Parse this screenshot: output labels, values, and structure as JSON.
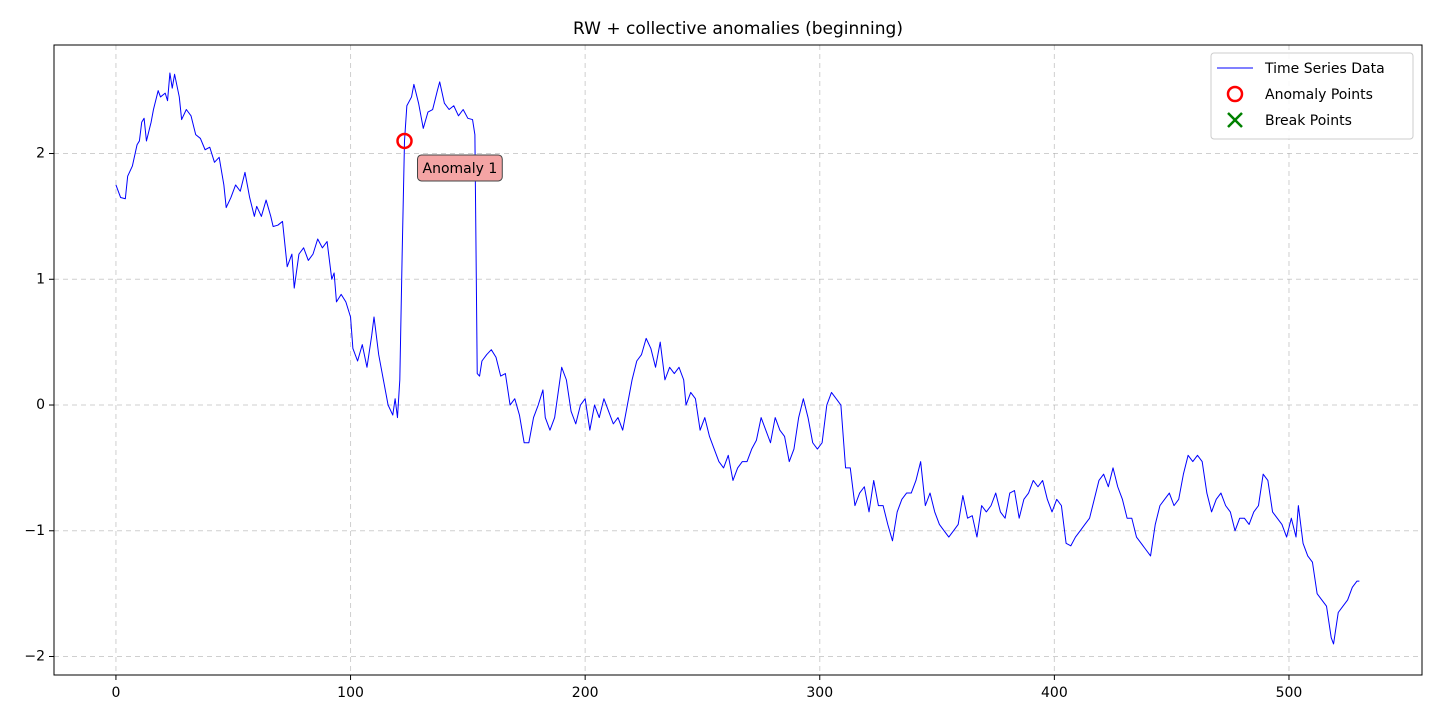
{
  "chart_data": {
    "type": "line",
    "title": "RW + collective anomalies (beginning)",
    "xlim": [
      -26.4,
      556.7
    ],
    "ylim": [
      -2.147,
      2.863
    ],
    "xticks": [
      0,
      100,
      200,
      300,
      400,
      500
    ],
    "yticks": [
      {
        "value": -2,
        "label": "−2"
      },
      {
        "value": -1,
        "label": "−1"
      },
      0,
      1,
      2
    ],
    "grid": true,
    "legend": "upper right",
    "annotations": [
      {
        "text": "Anomaly 1"
      }
    ],
    "series": [
      {
        "name": "Time Series Data",
        "color": "#0000ff",
        "marker": "line",
        "x": [
          0,
          2,
          4,
          5,
          7,
          9,
          10,
          11,
          12,
          13,
          15,
          16,
          18,
          19,
          21,
          22,
          23,
          24,
          25,
          27,
          28,
          30,
          32,
          34,
          36,
          38,
          40,
          42,
          44,
          46,
          47,
          49,
          51,
          53,
          55,
          57,
          59,
          60,
          62,
          64,
          66,
          67,
          69,
          71,
          73,
          75,
          76,
          78,
          80,
          82,
          84,
          86,
          88,
          90,
          92,
          93,
          94,
          96,
          98,
          100,
          101,
          103,
          105,
          107,
          109,
          110,
          112,
          114,
          116,
          118,
          119,
          120,
          121,
          122,
          123,
          124,
          126,
          127,
          129,
          131,
          133,
          135,
          137,
          138,
          140,
          142,
          144,
          146,
          148,
          150,
          152,
          153,
          154,
          155,
          156,
          158,
          160,
          162,
          164,
          166,
          168,
          170,
          172,
          174,
          176,
          178,
          180,
          182,
          183,
          185,
          187,
          190,
          192,
          194,
          196,
          198,
          200,
          202,
          204,
          206,
          208,
          210,
          212,
          214,
          216,
          218,
          220,
          222,
          224,
          226,
          228,
          230,
          232,
          234,
          236,
          238,
          240,
          242,
          243,
          245,
          247,
          249,
          251,
          253,
          255,
          257,
          259,
          261,
          263,
          265,
          267,
          269,
          271,
          273,
          275,
          277,
          279,
          281,
          283,
          285,
          287,
          289,
          291,
          293,
          295,
          297,
          299,
          301,
          303,
          305,
          307,
          309,
          311,
          313,
          315,
          317,
          319,
          321,
          323,
          325,
          327,
          329,
          331,
          333,
          335,
          337,
          339,
          341,
          343,
          345,
          347,
          349,
          351,
          353,
          355,
          357,
          359,
          361,
          363,
          365,
          367,
          369,
          371,
          373,
          375,
          377,
          379,
          381,
          383,
          385,
          387,
          389,
          391,
          393,
          395,
          397,
          399,
          401,
          403,
          405,
          407,
          409,
          411,
          413,
          415,
          417,
          419,
          421,
          423,
          425,
          427,
          429,
          431,
          433,
          435,
          437,
          439,
          441,
          443,
          445,
          447,
          449,
          451,
          453,
          455,
          457,
          459,
          461,
          463,
          465,
          467,
          469,
          471,
          473,
          475,
          477,
          479,
          481,
          483,
          485,
          487,
          489,
          491,
          493,
          495,
          497,
          499,
          501,
          503,
          504,
          506,
          508,
          510,
          512,
          514,
          516,
          518,
          519,
          521,
          523,
          525,
          527,
          529,
          530
        ],
        "values": [
          1.75,
          1.65,
          1.64,
          1.82,
          1.9,
          2.07,
          2.1,
          2.25,
          2.28,
          2.1,
          2.25,
          2.35,
          2.5,
          2.45,
          2.48,
          2.42,
          2.64,
          2.52,
          2.63,
          2.45,
          2.27,
          2.35,
          2.3,
          2.15,
          2.12,
          2.03,
          2.05,
          1.93,
          1.97,
          1.75,
          1.57,
          1.65,
          1.75,
          1.7,
          1.85,
          1.65,
          1.5,
          1.58,
          1.5,
          1.63,
          1.5,
          1.42,
          1.43,
          1.46,
          1.1,
          1.2,
          0.93,
          1.2,
          1.25,
          1.15,
          1.2,
          1.32,
          1.25,
          1.3,
          1.0,
          1.05,
          0.82,
          0.88,
          0.82,
          0.7,
          0.45,
          0.35,
          0.48,
          0.3,
          0.55,
          0.7,
          0.4,
          0.2,
          0.0,
          -0.08,
          0.05,
          -0.1,
          0.2,
          1.2,
          2.1,
          2.38,
          2.45,
          2.55,
          2.4,
          2.2,
          2.33,
          2.35,
          2.5,
          2.57,
          2.4,
          2.35,
          2.38,
          2.3,
          2.35,
          2.28,
          2.27,
          2.15,
          0.25,
          0.23,
          0.35,
          0.4,
          0.44,
          0.38,
          0.23,
          0.25,
          0.0,
          0.05,
          -0.08,
          -0.3,
          -0.3,
          -0.1,
          0.0,
          0.12,
          -0.1,
          -0.2,
          -0.1,
          0.3,
          0.2,
          -0.05,
          -0.15,
          0.0,
          0.05,
          -0.2,
          0.0,
          -0.1,
          0.05,
          -0.05,
          -0.15,
          -0.1,
          -0.2,
          0.0,
          0.2,
          0.35,
          0.4,
          0.53,
          0.45,
          0.3,
          0.5,
          0.2,
          0.3,
          0.25,
          0.3,
          0.2,
          0.0,
          0.1,
          0.05,
          -0.2,
          -0.1,
          -0.25,
          -0.35,
          -0.45,
          -0.5,
          -0.4,
          -0.6,
          -0.5,
          -0.45,
          -0.45,
          -0.35,
          -0.28,
          -0.1,
          -0.2,
          -0.3,
          -0.1,
          -0.2,
          -0.25,
          -0.45,
          -0.35,
          -0.1,
          0.05,
          -0.1,
          -0.3,
          -0.35,
          -0.3,
          0.0,
          0.1,
          0.05,
          0.0,
          -0.5,
          -0.5,
          -0.8,
          -0.7,
          -0.65,
          -0.85,
          -0.6,
          -0.8,
          -0.8,
          -0.95,
          -1.08,
          -0.85,
          -0.75,
          -0.7,
          -0.7,
          -0.6,
          -0.45,
          -0.8,
          -0.7,
          -0.85,
          -0.95,
          -1.0,
          -1.05,
          -1.0,
          -0.95,
          -0.72,
          -0.9,
          -0.88,
          -1.05,
          -0.8,
          -0.85,
          -0.8,
          -0.7,
          -0.85,
          -0.9,
          -0.7,
          -0.68,
          -0.9,
          -0.75,
          -0.7,
          -0.6,
          -0.65,
          -0.6,
          -0.75,
          -0.85,
          -0.75,
          -0.8,
          -1.1,
          -1.12,
          -1.05,
          -1.0,
          -0.95,
          -0.9,
          -0.75,
          -0.6,
          -0.55,
          -0.65,
          -0.5,
          -0.65,
          -0.75,
          -0.9,
          -0.9,
          -1.05,
          -1.1,
          -1.15,
          -1.2,
          -0.95,
          -0.8,
          -0.75,
          -0.7,
          -0.8,
          -0.75,
          -0.55,
          -0.4,
          -0.45,
          -0.4,
          -0.45,
          -0.7,
          -0.85,
          -0.75,
          -0.7,
          -0.8,
          -0.85,
          -1.0,
          -0.9,
          -0.9,
          -0.95,
          -0.85,
          -0.8,
          -0.55,
          -0.6,
          -0.85,
          -0.9,
          -0.95,
          -1.05,
          -0.9,
          -1.05,
          -0.8,
          -1.1,
          -1.2,
          -1.25,
          -1.5,
          -1.55,
          -1.6,
          -1.85,
          -1.9,
          -1.65,
          -1.6,
          -1.55,
          -1.45,
          -1.4,
          -1.4
        ]
      },
      {
        "name": "Anomaly Points",
        "color": "#ff0000",
        "marker": "o",
        "x": [
          123
        ],
        "values": [
          2.1
        ]
      },
      {
        "name": "Break Points",
        "color": "#008000",
        "marker": "x",
        "x": [],
        "values": []
      }
    ]
  }
}
